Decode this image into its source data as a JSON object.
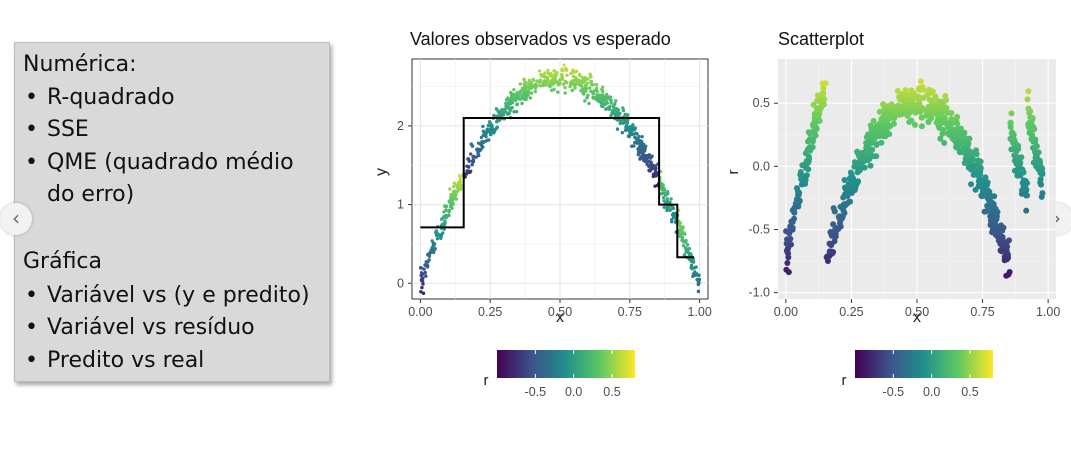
{
  "left_panel": {
    "numeric_heading": "Numérica:",
    "numeric_items": [
      "R-quadrado",
      "SSE",
      "QME (quadrado médio",
      "do erro)"
    ],
    "graphic_heading": "Gráfica",
    "graphic_items": [
      "Variável vs (y e predito)",
      "Variável vs resíduo",
      "Predito vs real"
    ]
  },
  "nav": {
    "prev_icon": "chevron-left-icon",
    "next_icon": "chevron-right-icon"
  },
  "chart_data": [
    {
      "type": "scatter",
      "title": "Valores observados vs esperado",
      "xlabel": "x",
      "ylabel": "y",
      "xlim": [
        -0.03,
        1.03
      ],
      "ylim": [
        -0.2,
        2.85
      ],
      "xticks": [
        "0.00",
        "0.25",
        "0.50",
        "0.75",
        "1.00"
      ],
      "yticks": [
        "0",
        "1",
        "2"
      ],
      "points_description": "y ≈ 2.6·(1 − ((x−0.5)/0.5)^2) with noise, colored by residual r",
      "step_fit": {
        "x": [
          0.0,
          0.155,
          0.155,
          0.855,
          0.855,
          0.92,
          0.92,
          0.98
        ],
        "y": [
          0.71,
          0.71,
          2.1,
          2.1,
          1.0,
          1.0,
          0.33,
          0.33
        ]
      },
      "colorbar": {
        "label": "r",
        "ticks": [
          "-0.5",
          "0.0",
          "0.5"
        ],
        "range": [
          -1.0,
          0.8
        ]
      },
      "grid": true,
      "legend_position": "bottom"
    },
    {
      "type": "scatter",
      "title": "Scatterplot",
      "xlabel": "x",
      "ylabel": "r",
      "xlim": [
        -0.03,
        1.03
      ],
      "ylim": [
        -1.05,
        0.85
      ],
      "xticks": [
        "0.00",
        "0.25",
        "0.50",
        "0.75",
        "1.00"
      ],
      "yticks": [
        "0.5",
        "0.0",
        "-0.5",
        "-1.0"
      ],
      "points_description": "residuals r = y − step fit; arcs between step breakpoints",
      "colorbar": {
        "label": "r",
        "ticks": [
          "-0.5",
          "0.0",
          "0.5"
        ],
        "range": [
          -1.0,
          0.8
        ]
      },
      "grid": true,
      "legend_position": "bottom"
    }
  ],
  "colors": {
    "viridis": [
      "#440154",
      "#3b528b",
      "#21918c",
      "#5ec962",
      "#fde725"
    ],
    "panel_bg": "#d9d9d9",
    "plot_bg_2": "#ebebeb"
  }
}
